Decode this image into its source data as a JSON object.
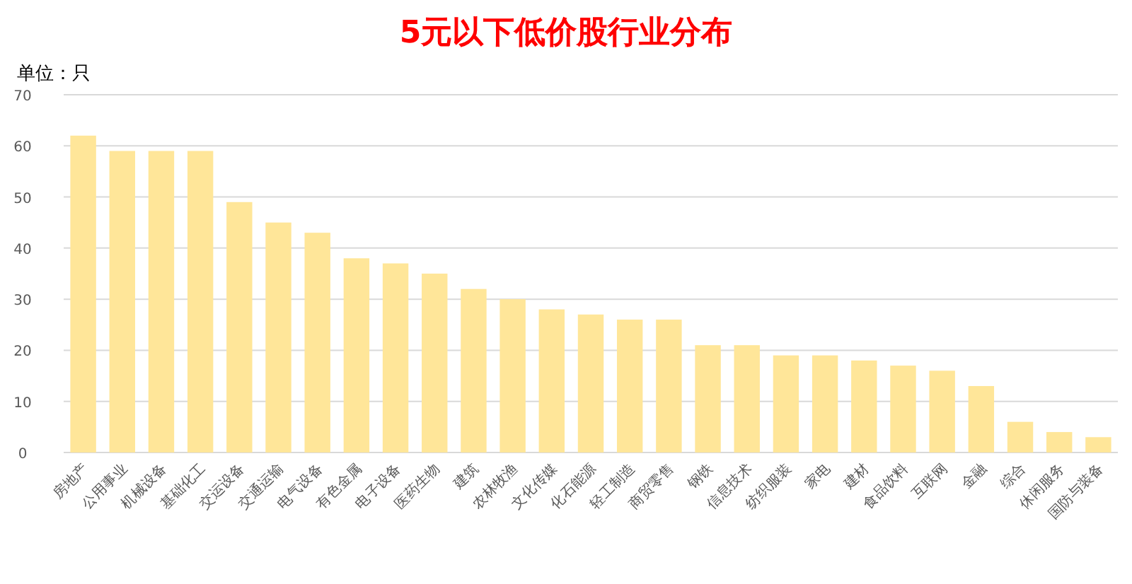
{
  "chart_data": {
    "type": "bar",
    "title": "5元以下低价股行业分布",
    "ylabel": "单位：只",
    "categories": [
      "房地产",
      "公用事业",
      "机械设备",
      "基础化工",
      "交运设备",
      "交通运输",
      "电气设备",
      "有色金属",
      "电子设备",
      "医药生物",
      "建筑",
      "农林牧渔",
      "文化传媒",
      "化石能源",
      "轻工制造",
      "商贸零售",
      "钢铁",
      "信息技术",
      "纺织服装",
      "家电",
      "建材",
      "食品饮料",
      "互联网",
      "金融",
      "综合",
      "休闲服务",
      "国防与装备"
    ],
    "values": [
      62,
      59,
      59,
      59,
      49,
      45,
      43,
      38,
      37,
      35,
      32,
      30,
      28,
      27,
      26,
      26,
      21,
      21,
      19,
      19,
      18,
      17,
      16,
      13,
      6,
      4,
      3
    ],
    "color": "#ffe699",
    "ylim": [
      0,
      70
    ],
    "yticks": [
      0,
      10,
      20,
      30,
      40,
      50,
      60,
      70
    ],
    "grid": "y"
  }
}
